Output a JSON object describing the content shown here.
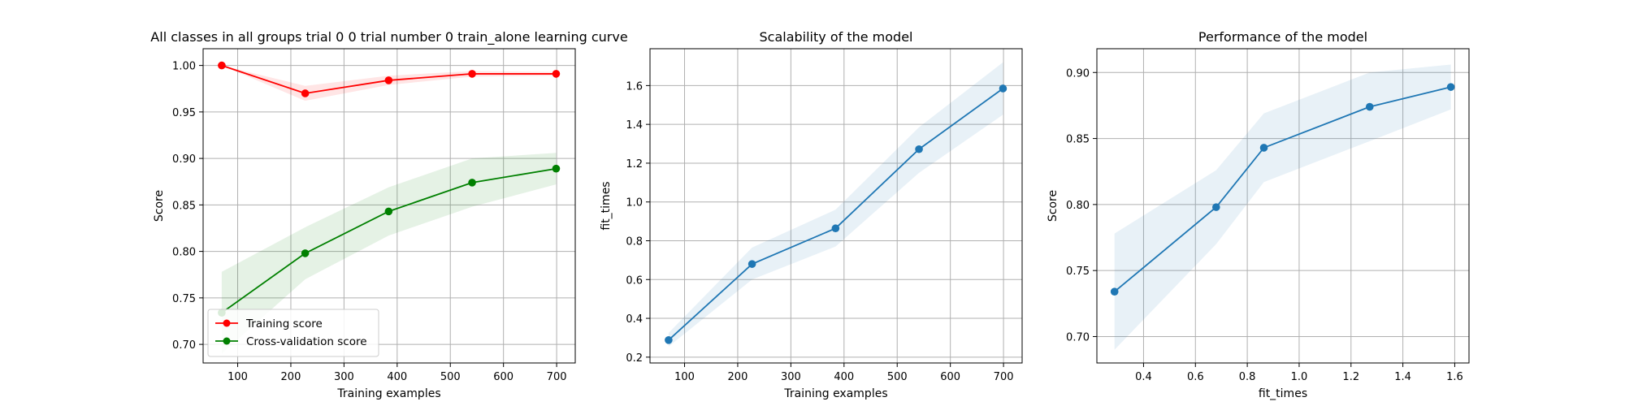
{
  "colors": {
    "train": "#ff0000",
    "cv": "#008000",
    "model": "#1f77b4",
    "grid": "#b0b0b0",
    "axes": "#000000"
  },
  "chart_data": [
    {
      "type": "line",
      "title": "All classes in all groups trial 0 0 trial number 0 train_alone learning curve",
      "xlabel": "Training examples",
      "ylabel": "Score",
      "xlim": [
        35,
        735
      ],
      "ylim": [
        0.68,
        1.018
      ],
      "xticks": [
        100,
        200,
        300,
        400,
        500,
        600,
        700
      ],
      "yticks": [
        0.7,
        0.75,
        0.8,
        0.85,
        0.9,
        0.95,
        1.0
      ],
      "grid": true,
      "legend": "lower-left",
      "x": [
        70,
        227,
        384,
        541,
        699
      ],
      "series": [
        {
          "name": "Training score",
          "color": "#ff0000",
          "values": [
            1.0,
            0.97,
            0.984,
            0.991,
            0.991
          ],
          "band_lower": [
            1.0,
            0.962,
            0.979,
            0.988,
            0.989
          ],
          "band_upper": [
            1.0,
            0.978,
            0.989,
            0.994,
            0.993
          ]
        },
        {
          "name": "Cross-validation score",
          "color": "#008000",
          "values": [
            0.734,
            0.798,
            0.843,
            0.874,
            0.889
          ],
          "band_lower": [
            0.69,
            0.77,
            0.817,
            0.848,
            0.872
          ],
          "band_upper": [
            0.778,
            0.826,
            0.869,
            0.9,
            0.906
          ]
        }
      ]
    },
    {
      "type": "line",
      "title": "Scalability of the model",
      "xlabel": "Training examples",
      "ylabel": "fit_times",
      "xlim": [
        35,
        735
      ],
      "ylim": [
        0.17,
        1.79
      ],
      "xticks": [
        100,
        200,
        300,
        400,
        500,
        600,
        700
      ],
      "yticks": [
        0.2,
        0.4,
        0.6,
        0.8,
        1.0,
        1.2,
        1.4,
        1.6
      ],
      "grid": true,
      "x": [
        70,
        227,
        384,
        541,
        699
      ],
      "series": [
        {
          "color": "#1f77b4",
          "values": [
            0.288,
            0.68,
            0.864,
            1.272,
            1.585
          ],
          "band_lower": [
            0.255,
            0.6,
            0.77,
            1.15,
            1.45
          ],
          "band_upper": [
            0.325,
            0.765,
            0.96,
            1.385,
            1.72
          ]
        }
      ]
    },
    {
      "type": "line",
      "title": "Performance of the model",
      "xlabel": "fit_times",
      "ylabel": "Score",
      "xlim": [
        0.22,
        1.655
      ],
      "ylim": [
        0.68,
        0.918
      ],
      "xticks": [
        0.4,
        0.6,
        0.8,
        1.0,
        1.2,
        1.4,
        1.6
      ],
      "yticks": [
        0.7,
        0.75,
        0.8,
        0.85,
        0.9
      ],
      "grid": true,
      "x": [
        0.288,
        0.68,
        0.864,
        1.272,
        1.585
      ],
      "series": [
        {
          "color": "#1f77b4",
          "values": [
            0.734,
            0.798,
            0.843,
            0.874,
            0.889
          ],
          "band_lower": [
            0.69,
            0.77,
            0.817,
            0.848,
            0.872
          ],
          "band_upper": [
            0.778,
            0.826,
            0.869,
            0.9,
            0.906
          ]
        }
      ]
    }
  ]
}
